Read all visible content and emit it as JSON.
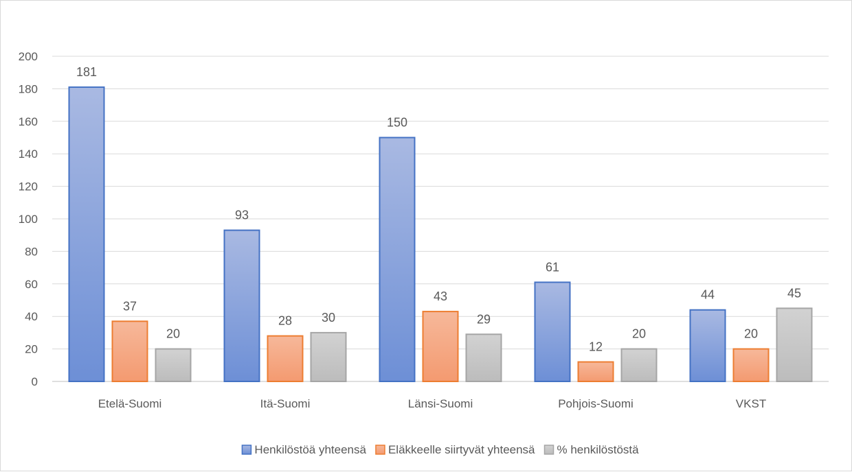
{
  "chart_data": {
    "type": "bar",
    "title": "",
    "xlabel": "",
    "ylabel": "",
    "ylim": [
      0,
      200
    ],
    "yticks": [
      0,
      20,
      40,
      60,
      80,
      100,
      120,
      140,
      160,
      180,
      200
    ],
    "grid": true,
    "legend_position": "bottom",
    "categories": [
      "Etelä-Suomi",
      "Itä-Suomi",
      "Länsi-Suomi",
      "Pohjois-Suomi",
      "VKST"
    ],
    "series": [
      {
        "name": "Henkilöstöä yhteensä",
        "values": [
          181,
          93,
          150,
          61,
          44
        ],
        "color": "#4472c4"
      },
      {
        "name": "Eläkkeelle siirtyvät yhteensä",
        "values": [
          37,
          28,
          43,
          12,
          20
        ],
        "color": "#ed7d31"
      },
      {
        "name": "% henkilöstöstä",
        "values": [
          20,
          30,
          29,
          20,
          45
        ],
        "color": "#a5a5a5"
      }
    ]
  }
}
